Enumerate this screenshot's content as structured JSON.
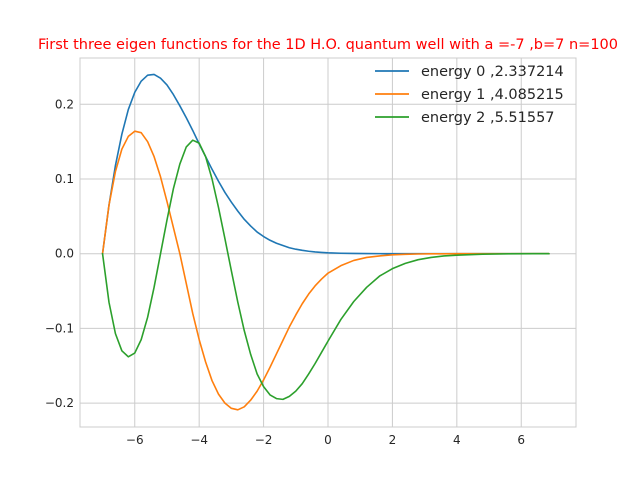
{
  "chart_data": {
    "type": "line",
    "title": "First three eigen functions for the 1D H.O. quantum well with a =-7 ,b=7 n=100",
    "title_color": "#ff0000",
    "xlabel": "",
    "ylabel": "",
    "xlim": [
      -7.7,
      7.7
    ],
    "ylim": [
      -0.232,
      0.262
    ],
    "xticks": [
      -6,
      -4,
      -2,
      0,
      2,
      4,
      6
    ],
    "yticks": [
      -0.2,
      -0.1,
      0.0,
      0.1,
      0.2
    ],
    "xtick_labels": [
      "−6",
      "−4",
      "−2",
      "0",
      "2",
      "4",
      "6"
    ],
    "ytick_labels": [
      "−0.2",
      "−0.1",
      "0.0",
      "0.1",
      "0.2"
    ],
    "grid": true,
    "legend_position": "top-right",
    "series": [
      {
        "name": "energy 0 ,2.337214",
        "color": "#1f77b4",
        "x": [
          -7.0,
          -6.8,
          -6.6,
          -6.4,
          -6.2,
          -6.0,
          -5.8,
          -5.6,
          -5.4,
          -5.2,
          -5.0,
          -4.8,
          -4.6,
          -4.4,
          -4.2,
          -4.0,
          -3.8,
          -3.6,
          -3.4,
          -3.2,
          -3.0,
          -2.8,
          -2.6,
          -2.4,
          -2.2,
          -2.0,
          -1.8,
          -1.6,
          -1.4,
          -1.2,
          -1.0,
          -0.8,
          -0.6,
          -0.4,
          -0.2,
          0.0,
          0.4,
          0.8,
          1.2,
          1.6,
          2.0,
          2.4,
          2.8,
          3.2,
          3.6,
          4.0,
          4.8,
          5.6,
          6.4,
          6.86
        ],
        "y": [
          0.0,
          0.065,
          0.118,
          0.16,
          0.193,
          0.216,
          0.231,
          0.239,
          0.24,
          0.235,
          0.226,
          0.213,
          0.198,
          0.182,
          0.165,
          0.147,
          0.13,
          0.113,
          0.097,
          0.082,
          0.069,
          0.057,
          0.046,
          0.037,
          0.029,
          0.023,
          0.018,
          0.014,
          0.011,
          0.008,
          0.006,
          0.0045,
          0.0033,
          0.0024,
          0.0017,
          0.0012,
          0.0006,
          0.0003,
          0.0002,
          0.0001,
          0.0,
          0.0,
          0.0,
          0.0,
          0.0,
          0.0,
          0.0,
          0.0,
          0.0,
          0.0
        ]
      },
      {
        "name": "energy 1 ,4.085215",
        "color": "#ff7f0e",
        "x": [
          -7.0,
          -6.8,
          -6.6,
          -6.4,
          -6.2,
          -6.0,
          -5.8,
          -5.6,
          -5.4,
          -5.2,
          -5.0,
          -4.8,
          -4.6,
          -4.4,
          -4.2,
          -4.0,
          -3.8,
          -3.6,
          -3.4,
          -3.2,
          -3.0,
          -2.8,
          -2.6,
          -2.4,
          -2.2,
          -2.0,
          -1.8,
          -1.6,
          -1.4,
          -1.2,
          -1.0,
          -0.8,
          -0.6,
          -0.4,
          -0.2,
          0.0,
          0.4,
          0.8,
          1.2,
          1.6,
          2.0,
          2.4,
          2.8,
          3.2,
          3.6,
          4.0,
          4.8,
          5.6,
          6.4,
          6.86
        ],
        "y": [
          0.0,
          0.065,
          0.11,
          0.14,
          0.157,
          0.164,
          0.162,
          0.15,
          0.13,
          0.103,
          0.07,
          0.035,
          0.0,
          -0.04,
          -0.08,
          -0.115,
          -0.145,
          -0.17,
          -0.188,
          -0.2,
          -0.207,
          -0.209,
          -0.205,
          -0.196,
          -0.184,
          -0.169,
          -0.152,
          -0.134,
          -0.116,
          -0.098,
          -0.082,
          -0.067,
          -0.054,
          -0.043,
          -0.034,
          -0.026,
          -0.016,
          -0.009,
          -0.005,
          -0.003,
          -0.0015,
          -0.0008,
          -0.0004,
          -0.0002,
          -0.0001,
          0.0,
          0.0,
          0.0,
          0.0,
          0.0
        ]
      },
      {
        "name": "energy 2 ,5.51557",
        "color": "#2ca02c",
        "x": [
          -7.0,
          -6.8,
          -6.6,
          -6.4,
          -6.2,
          -6.0,
          -5.8,
          -5.6,
          -5.4,
          -5.2,
          -5.0,
          -4.8,
          -4.6,
          -4.4,
          -4.2,
          -4.0,
          -3.8,
          -3.6,
          -3.4,
          -3.2,
          -3.0,
          -2.8,
          -2.6,
          -2.4,
          -2.2,
          -2.0,
          -1.8,
          -1.6,
          -1.4,
          -1.2,
          -1.0,
          -0.8,
          -0.6,
          -0.4,
          -0.2,
          0.0,
          0.4,
          0.8,
          1.2,
          1.6,
          2.0,
          2.4,
          2.8,
          3.2,
          3.6,
          4.0,
          4.8,
          5.6,
          6.4,
          6.86
        ],
        "y": [
          0.0,
          -0.065,
          -0.107,
          -0.13,
          -0.138,
          -0.133,
          -0.115,
          -0.085,
          -0.045,
          0.0,
          0.045,
          0.087,
          0.12,
          0.143,
          0.152,
          0.148,
          0.13,
          0.1,
          0.062,
          0.02,
          -0.023,
          -0.065,
          -0.103,
          -0.135,
          -0.161,
          -0.178,
          -0.189,
          -0.194,
          -0.195,
          -0.191,
          -0.184,
          -0.174,
          -0.161,
          -0.147,
          -0.132,
          -0.117,
          -0.088,
          -0.064,
          -0.045,
          -0.03,
          -0.02,
          -0.013,
          -0.008,
          -0.005,
          -0.003,
          -0.002,
          -0.0007,
          -0.0002,
          0.0,
          0.0
        ]
      }
    ]
  }
}
